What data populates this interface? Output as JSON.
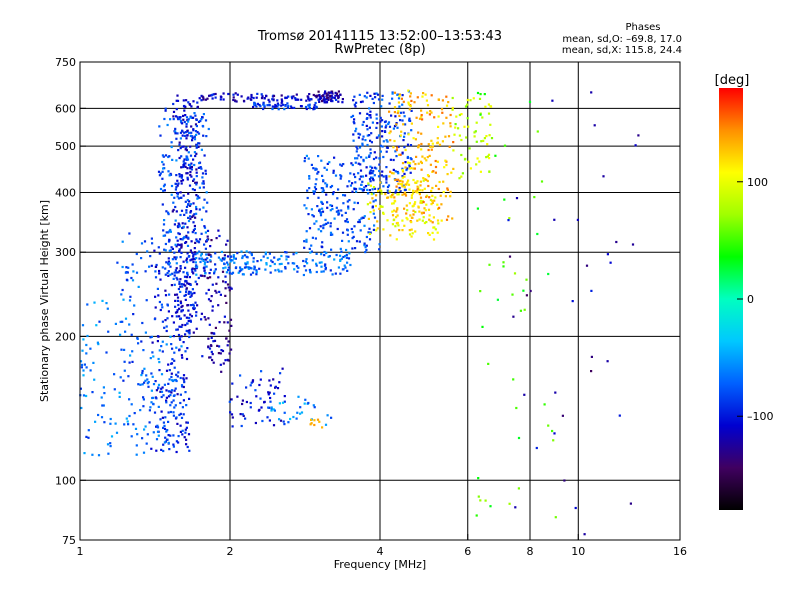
{
  "chart_data": {
    "type": "scatter",
    "title": "Tromsø 20141115 13:52:00–13:53:43",
    "subtitle": "RwPretec (8p)",
    "stats": {
      "heading": "Phases",
      "line1": "mean, sd,O: –69.8, 17.0",
      "line2": "mean, sd,X: 115.8, 24.4"
    },
    "xlabel": "Frequency [MHz]",
    "ylabel": "Stationary phase Virtual Height [km]",
    "xscale": "log",
    "yscale": "log",
    "xlim": [
      1,
      16
    ],
    "ylim": [
      75,
      750
    ],
    "xticks": [
      {
        "value": 1,
        "label": "1"
      },
      {
        "value": 2,
        "label": "2"
      },
      {
        "value": 4,
        "label": "4"
      },
      {
        "value": 6,
        "label": "6"
      },
      {
        "value": 8,
        "label": "8"
      },
      {
        "value": 10,
        "label": "10"
      },
      {
        "value": 16,
        "label": "16"
      }
    ],
    "yticks": [
      {
        "value": 75,
        "label": "75"
      },
      {
        "value": 100,
        "label": "100"
      },
      {
        "value": 200,
        "label": "200"
      },
      {
        "value": 300,
        "label": "300"
      },
      {
        "value": 400,
        "label": "400"
      },
      {
        "value": 500,
        "label": "500"
      },
      {
        "value": 600,
        "label": "600"
      },
      {
        "value": 750,
        "label": "750"
      }
    ],
    "grid": true,
    "colorbar": {
      "label": "[deg]",
      "range": [
        -180,
        180
      ],
      "ticks": [
        {
          "value": 100,
          "label": "100"
        },
        {
          "value": 0,
          "label": "0"
        },
        {
          "value": -100,
          "label": "–100"
        }
      ],
      "stops": [
        "#000000",
        "#400060",
        "#0000d0",
        "#0060ff",
        "#00c8ff",
        "#00ffc0",
        "#00ff00",
        "#a0ff00",
        "#ffff00",
        "#ff9000",
        "#ff0000"
      ]
    },
    "series": [
      {
        "name": "O",
        "segments": [
          {
            "f": [
              1.55,
              1.72
            ],
            "h": [
              200,
              640
            ],
            "phase": -105,
            "n": 260,
            "jit": 0.05
          },
          {
            "f": [
              1.4,
              1.65
            ],
            "h": [
              115,
              320
            ],
            "phase": -95,
            "n": 230,
            "jit": 0.05
          },
          {
            "f": [
              1.72,
              3.4
            ],
            "h": [
              620,
              640
            ],
            "phase": -110,
            "n": 110,
            "jit": 0.04
          },
          {
            "f": [
              1.75,
              2.0
            ],
            "h": [
              170,
              330
            ],
            "phase": -120,
            "n": 110,
            "jit": 0.05
          },
          {
            "f": [
              2.2,
              3.0
            ],
            "h": [
              600,
              615
            ],
            "phase": -90,
            "n": 60,
            "jit": 0.03
          },
          {
            "f": [
              3.0,
              3.3
            ],
            "h": [
              620,
              650
            ],
            "phase": -125,
            "n": 40,
            "jit": 0.02
          },
          {
            "f": [
              2.0,
              2.6
            ],
            "h": [
              130,
              170
            ],
            "phase": -100,
            "n": 60,
            "jit": 0.05
          }
        ]
      },
      {
        "name": "X",
        "segments": [
          {
            "f": [
              1.45,
              1.8
            ],
            "h": [
              270,
              600
            ],
            "phase": -80,
            "n": 220,
            "jit": 0.05
          },
          {
            "f": [
              1.7,
              3.5
            ],
            "h": [
              270,
              300
            ],
            "phase": -70,
            "n": 200,
            "jit": 0.03
          },
          {
            "f": [
              2.8,
              4.0
            ],
            "h": [
              300,
              480
            ],
            "phase": -78,
            "n": 220,
            "jit": 0.04
          },
          {
            "f": [
              3.5,
              4.6
            ],
            "h": [
              400,
              650
            ],
            "phase": -85,
            "n": 230,
            "jit": 0.04
          },
          {
            "f": [
              3.8,
              5.2
            ],
            "h": [
              320,
              430
            ],
            "phase": 110,
            "n": 130,
            "jit": 0.04
          },
          {
            "f": [
              4.2,
              5.6
            ],
            "h": [
              350,
              650
            ],
            "phase": 130,
            "n": 220,
            "jit": 0.04
          },
          {
            "f": [
              5.6,
              6.8
            ],
            "h": [
              430,
              640
            ],
            "phase": 85,
            "n": 60,
            "jit": 0.05
          },
          {
            "f": [
              1.0,
              1.3
            ],
            "h": [
              110,
              240
            ],
            "phase": -65,
            "n": 90,
            "jit": 0.06
          },
          {
            "f": [
              1.2,
              1.4
            ],
            "h": [
              140,
              340
            ],
            "phase": -70,
            "n": 50,
            "jit": 0.06
          },
          {
            "f": [
              1.3,
              1.6
            ],
            "h": [
              115,
              200
            ],
            "phase": -72,
            "n": 80,
            "jit": 0.05
          },
          {
            "f": [
              2.4,
              3.2
            ],
            "h": [
              128,
              150
            ],
            "phase": -60,
            "n": 30,
            "jit": 0.05
          },
          {
            "f": [
              2.8,
              3.1
            ],
            "h": [
              128,
              135
            ],
            "phase": 140,
            "n": 8,
            "jit": 0.03
          },
          {
            "f": [
              6.2,
              9.0
            ],
            "h": [
              78,
              650
            ],
            "phase": 50,
            "n": 45,
            "jit": 0.06
          },
          {
            "f": [
              7.0,
              13.0
            ],
            "h": [
              76,
              650
            ],
            "phase": -120,
            "n": 35,
            "jit": 0.08
          }
        ]
      }
    ]
  }
}
